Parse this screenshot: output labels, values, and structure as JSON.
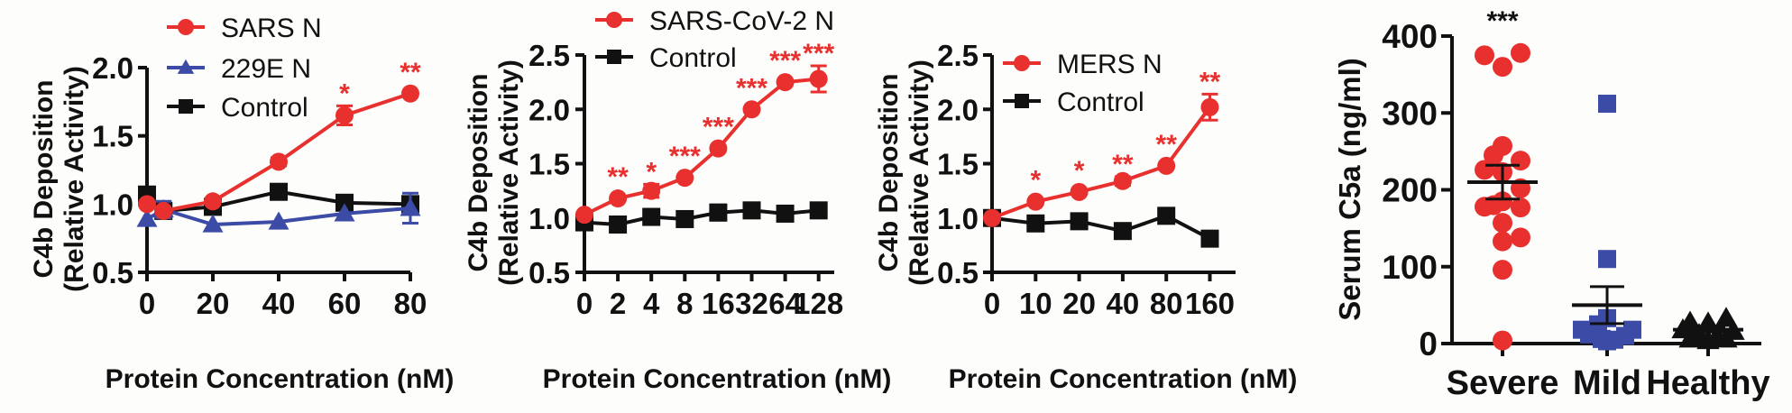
{
  "colors": {
    "red": "#e8312f",
    "blue": "#3b4ba6",
    "black": "#111111"
  },
  "chart_data": [
    {
      "type": "line",
      "panel": "SARS/229E",
      "xlabel": "Protein Concentration (nM)",
      "ylabel_line1": "C4b Deposition",
      "ylabel_line2": "(Relative Activity)",
      "x": [
        0,
        5,
        20,
        40,
        60,
        80
      ],
      "xticks": [
        0,
        20,
        40,
        60,
        80
      ],
      "xtick_labels": [
        "0",
        "20",
        "40",
        "60",
        "80"
      ],
      "xscale": "linear",
      "ylim": [
        0.5,
        2.0
      ],
      "yticks": [
        0.5,
        1.0,
        1.5,
        2.0
      ],
      "ytick_labels": [
        "0.5",
        "1.0",
        "1.5",
        "2.0"
      ],
      "legend_position": "top-left",
      "series": [
        {
          "name": "SARS N",
          "marker": "circle",
          "color": "red",
          "values": [
            1.0,
            0.95,
            1.02,
            1.31,
            1.65,
            1.81
          ],
          "errors": [
            0.0,
            0.0,
            0.0,
            0.03,
            0.07,
            0.0
          ],
          "stars": [
            "",
            "",
            "",
            "",
            "*",
            "**"
          ]
        },
        {
          "name": "229E N",
          "marker": "triangle",
          "color": "blue",
          "values": [
            0.89,
            0.96,
            0.85,
            0.87,
            0.93,
            0.97
          ],
          "errors": [
            0.0,
            0.06,
            0.0,
            0.0,
            0.0,
            0.11
          ],
          "stars": [
            "",
            "",
            "",
            "",
            "",
            ""
          ]
        },
        {
          "name": "Control",
          "marker": "square",
          "color": "black",
          "values": [
            1.07,
            0.95,
            0.98,
            1.09,
            1.01,
            1.0
          ],
          "errors": [
            0.0,
            0.0,
            0.0,
            0.05,
            0.0,
            0.0
          ],
          "stars": [
            "",
            "",
            "",
            "",
            "",
            ""
          ]
        }
      ]
    },
    {
      "type": "line",
      "panel": "SARS-CoV-2",
      "xlabel": "Protein Concentration (nM)",
      "ylabel_line1": "C4b Deposition",
      "ylabel_line2": "(Relative Activity)",
      "x": [
        0,
        2,
        4,
        8,
        16,
        32,
        64,
        128
      ],
      "xticks": [
        0,
        2,
        4,
        8,
        16,
        32,
        64,
        128
      ],
      "xtick_labels": [
        "0",
        "2",
        "4",
        "8",
        "16",
        "32",
        "64",
        "128"
      ],
      "xscale": "categorical",
      "ylim": [
        0.5,
        2.5
      ],
      "yticks": [
        0.5,
        1.0,
        1.5,
        2.0,
        2.5
      ],
      "ytick_labels": [
        "0.5",
        "1.0",
        "1.5",
        "2.0",
        "2.5"
      ],
      "legend_position": "top-left",
      "series": [
        {
          "name": "SARS-CoV-2 N",
          "marker": "circle",
          "color": "red",
          "values": [
            1.03,
            1.18,
            1.25,
            1.37,
            1.64,
            2.0,
            2.25,
            2.28
          ],
          "errors": [
            0.0,
            0.0,
            0.06,
            0.0,
            0.0,
            0.0,
            0.0,
            0.12
          ],
          "stars": [
            "",
            "**",
            "*",
            "***",
            "***",
            "***",
            "***",
            "***"
          ]
        },
        {
          "name": "Control",
          "marker": "square",
          "color": "black",
          "values": [
            0.96,
            0.94,
            1.01,
            0.99,
            1.05,
            1.07,
            1.04,
            1.07
          ],
          "errors": [
            0.07,
            0.07,
            0.07,
            0.0,
            0.07,
            0.0,
            0.0,
            0.0
          ],
          "stars": [
            "",
            "",
            "",
            "",
            "",
            "",
            "",
            ""
          ]
        }
      ]
    },
    {
      "type": "line",
      "panel": "MERS",
      "xlabel": "Protein Concentration (nM)",
      "ylabel_line1": "C4b Deposition",
      "ylabel_line2": "(Relative Activity)",
      "x": [
        0,
        10,
        20,
        40,
        80,
        160
      ],
      "xticks": [
        0,
        10,
        20,
        40,
        80,
        160
      ],
      "xtick_labels": [
        "0",
        "10",
        "20",
        "40",
        "80",
        "160"
      ],
      "xscale": "categorical",
      "ylim": [
        0.5,
        2.5
      ],
      "yticks": [
        0.5,
        1.0,
        1.5,
        2.0,
        2.5
      ],
      "ytick_labels": [
        "0.5",
        "1.0",
        "1.5",
        "2.0",
        "2.5"
      ],
      "legend_position": "top-left",
      "series": [
        {
          "name": "MERS N",
          "marker": "circle",
          "color": "red",
          "values": [
            1.0,
            1.15,
            1.24,
            1.34,
            1.48,
            2.02
          ],
          "errors": [
            0.0,
            0.0,
            0.0,
            0.04,
            0.0,
            0.12
          ],
          "stars": [
            "",
            "*",
            "*",
            "**",
            "**",
            "**"
          ]
        },
        {
          "name": "Control",
          "marker": "square",
          "color": "black",
          "values": [
            1.0,
            0.95,
            0.97,
            0.88,
            1.02,
            0.81
          ],
          "errors": [
            0.04,
            0.0,
            0.0,
            0.0,
            0.0,
            0.0
          ],
          "stars": [
            "",
            "",
            "",
            "",
            "",
            ""
          ]
        }
      ]
    },
    {
      "type": "scatter",
      "panel": "Serum C5a",
      "ylabel": "Serum C5a (ng/ml)",
      "ylim": [
        0,
        400
      ],
      "yticks": [
        0,
        100,
        200,
        300,
        400
      ],
      "ytick_labels": [
        "0",
        "100",
        "200",
        "300",
        "400"
      ],
      "categories": [
        "Severe",
        "Mild",
        "Healthy"
      ],
      "groups": [
        {
          "name": "Severe",
          "marker": "circle",
          "color": "red",
          "points": [
            {
              "v": 375,
              "j": -1
            },
            {
              "v": 378,
              "j": 1
            },
            {
              "v": 360,
              "j": 0
            },
            {
              "v": 257,
              "j": 0
            },
            {
              "v": 245,
              "j": -0.5
            },
            {
              "v": 238,
              "j": 1
            },
            {
              "v": 226,
              "j": -1
            },
            {
              "v": 223,
              "j": 0
            },
            {
              "v": 202,
              "j": 1
            },
            {
              "v": 185,
              "j": 0
            },
            {
              "v": 180,
              "j": -0.5
            },
            {
              "v": 178,
              "j": -1
            },
            {
              "v": 177,
              "j": 1
            },
            {
              "v": 157,
              "j": 0
            },
            {
              "v": 138,
              "j": 1
            },
            {
              "v": 133,
              "j": 0
            },
            {
              "v": 96,
              "j": 0
            },
            {
              "v": 4,
              "j": 0
            }
          ],
          "mean": 210,
          "sem": 22,
          "stars": "***"
        },
        {
          "name": "Mild",
          "marker": "square",
          "color": "blue",
          "points": [
            {
              "v": 312,
              "j": 0
            },
            {
              "v": 110,
              "j": 0
            },
            {
              "v": 33,
              "j": 0
            },
            {
              "v": 25,
              "j": -0.5
            },
            {
              "v": 18,
              "j": -1.4
            },
            {
              "v": 18,
              "j": 1.4
            },
            {
              "v": 12,
              "j": -1
            },
            {
              "v": 10,
              "j": 1
            },
            {
              "v": 6,
              "j": -0.3
            },
            {
              "v": 5,
              "j": 0.4
            },
            {
              "v": 3,
              "j": 0
            }
          ],
          "mean": 50,
          "sem": 24,
          "stars": ""
        },
        {
          "name": "Healthy",
          "marker": "triangle",
          "color": "black",
          "points": [
            {
              "v": 33,
              "j": 1
            },
            {
              "v": 28,
              "j": -1
            },
            {
              "v": 27,
              "j": 0
            },
            {
              "v": 18,
              "j": -1.4
            },
            {
              "v": 16,
              "j": 1.4
            },
            {
              "v": 12,
              "j": -0.5
            },
            {
              "v": 10,
              "j": 0.5
            },
            {
              "v": 6,
              "j": -1
            },
            {
              "v": 6,
              "j": 1
            },
            {
              "v": 4,
              "j": 0
            }
          ],
          "mean": 18,
          "sem": 3,
          "stars": ""
        }
      ]
    }
  ]
}
